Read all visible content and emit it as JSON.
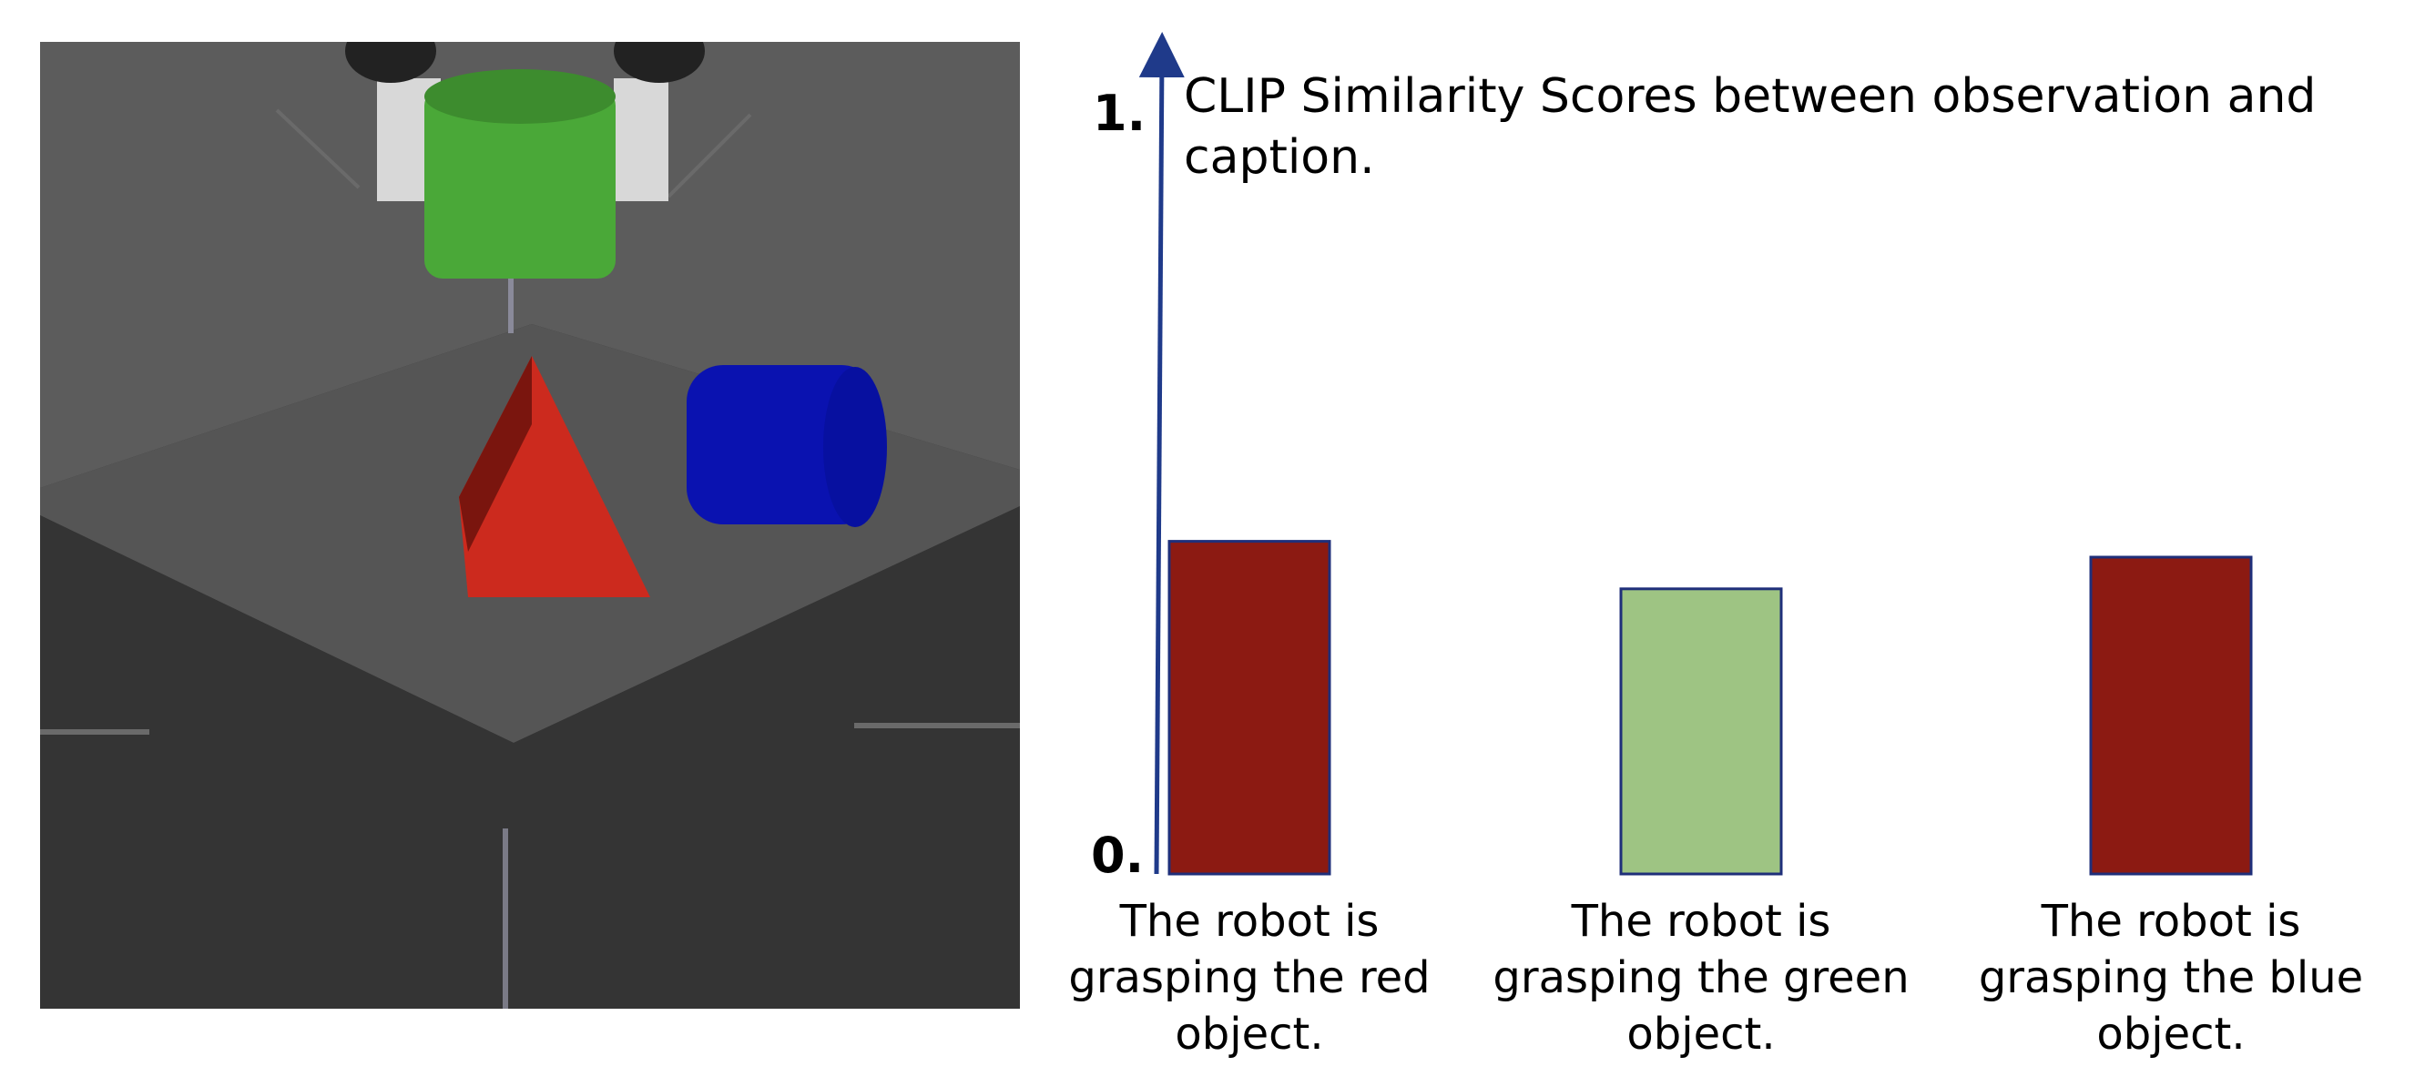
{
  "chart_data": {
    "type": "bar",
    "title_lines": [
      "CLIP Similarity Scores between observation and",
      "caption."
    ],
    "y_ticks": [
      "0.",
      "1."
    ],
    "ylim": [
      0,
      1
    ],
    "categories": [
      [
        "The robot is",
        "grasping the red",
        "object."
      ],
      [
        "The robot is",
        "grasping the green",
        "object."
      ],
      [
        "The robot is",
        "grasping the blue",
        "object."
      ]
    ],
    "values": [
      0.42,
      0.36,
      0.4
    ],
    "bar_colors": [
      "#8c1a12",
      "#9ec483",
      "#8c1a12"
    ],
    "bar_edge_color": "#1f2f7a",
    "axis_color": "#1f3a8a"
  },
  "scene": {
    "description_icon": "robot-scene-image",
    "colors": {
      "background_dark": "#333333",
      "table": "#555555",
      "wall": "#5c5c5c",
      "green_object": "#4aa838",
      "red_object": "#cc2a1e",
      "blue_object": "#0a12b0"
    }
  }
}
